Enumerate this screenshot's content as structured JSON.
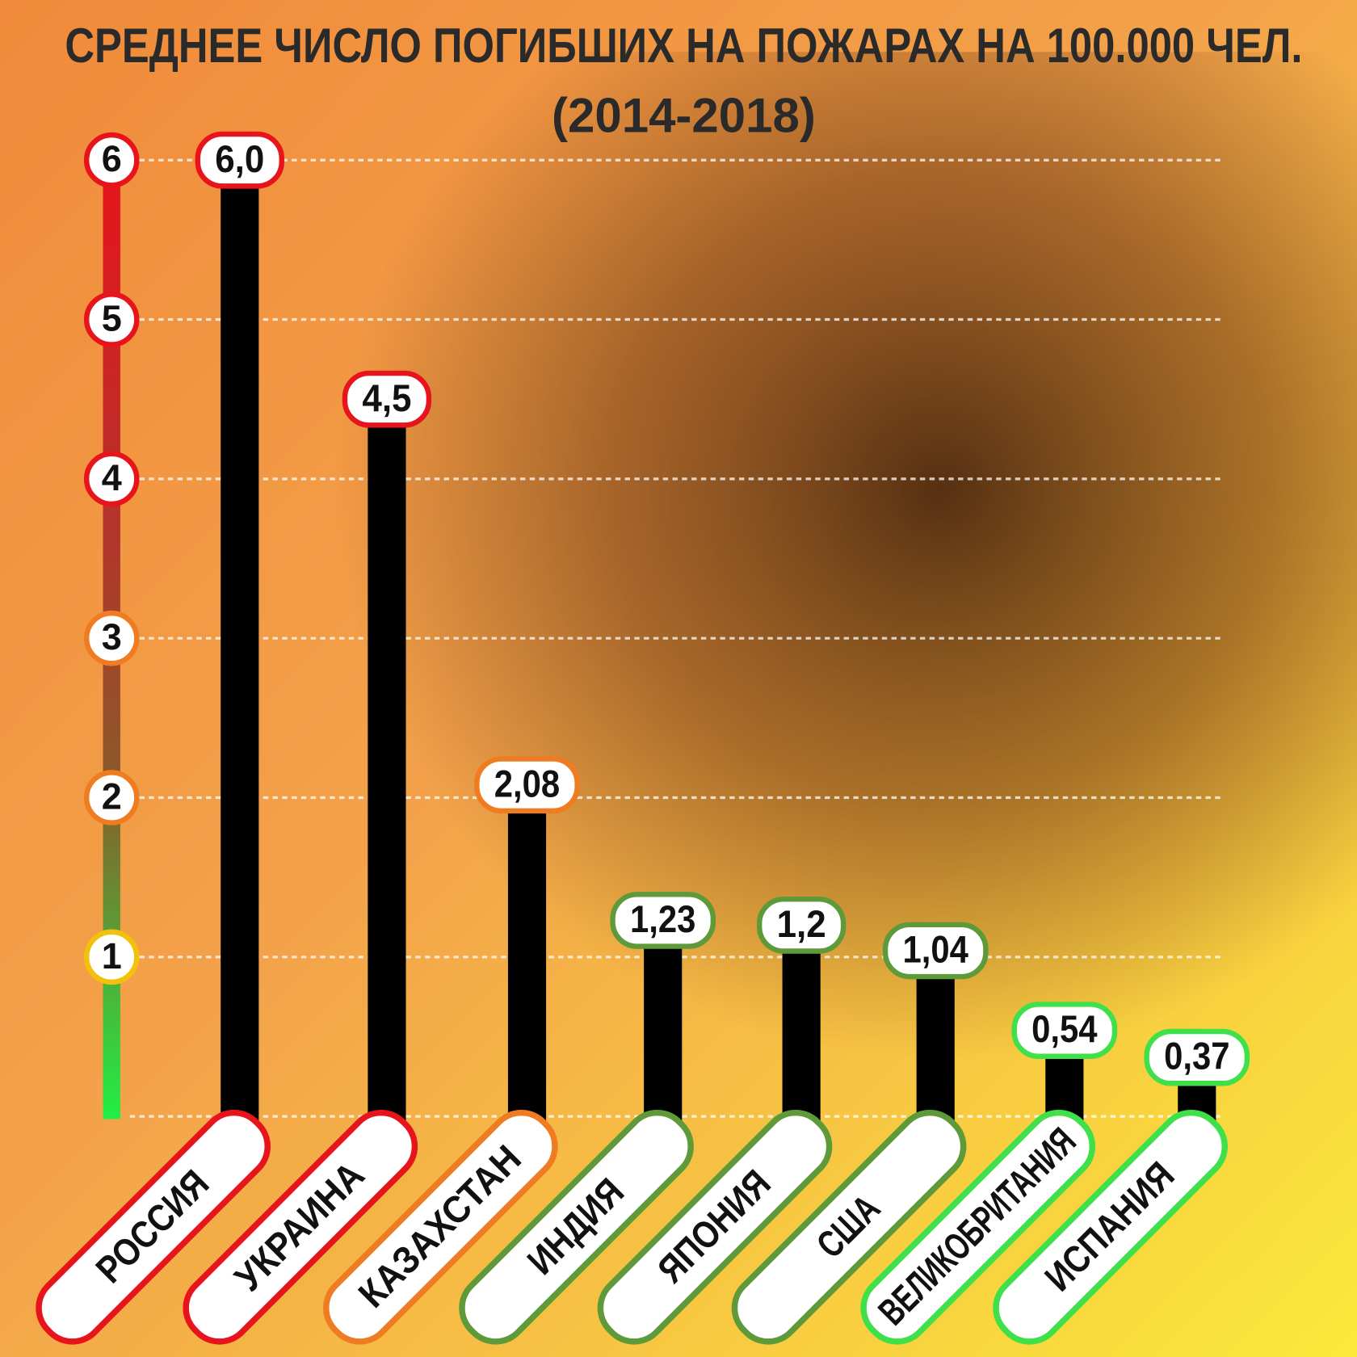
{
  "chart_data": {
    "type": "bar",
    "title": "СРЕДНЕЕ ЧИСЛО ПОГИБШИХ НА ПОЖАРАХ  НА 100.000 ЧЕЛ.",
    "subtitle": "(2014-2018)",
    "categories": [
      "РОССИЯ",
      "УКРАИНА",
      "КАЗАХСТАН",
      "ИНДИЯ",
      "ЯПОНИЯ",
      "США",
      "ВЕЛИКОБРИТАНИЯ",
      "ИСПАНИЯ"
    ],
    "values": [
      6.0,
      4.5,
      2.08,
      1.23,
      1.2,
      1.04,
      0.54,
      0.37
    ],
    "value_labels": [
      "6,0",
      "4,5",
      "2,08",
      "1,23",
      "1,2",
      "1,04",
      "0,54",
      "0,37"
    ],
    "color": "#000000",
    "label_colors": [
      "#e8141c",
      "#e8141c",
      "#f07c22",
      "#5f9a3a",
      "#5f9a3a",
      "#5f9a3a",
      "#3fe04a",
      "#3fe04a"
    ],
    "ylim": [
      0,
      6
    ],
    "yticks": [
      1,
      2,
      3,
      4,
      5,
      6
    ],
    "ytick_colors": [
      "#f2c10c",
      "#f07c22",
      "#f07c22",
      "#e8141c",
      "#e8141c",
      "#e8141c"
    ],
    "grid": true
  }
}
